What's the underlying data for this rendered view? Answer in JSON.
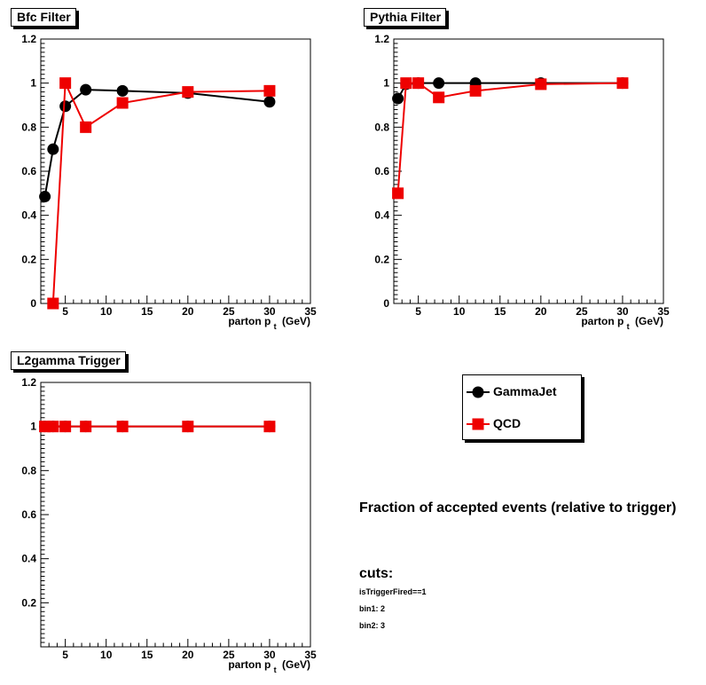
{
  "colors": {
    "gammajet": "#000000",
    "qcd": "#ee0000",
    "frame": "#000000"
  },
  "legend": {
    "entries": [
      {
        "name": "GammaJet",
        "color": "#000000",
        "marker": "circle"
      },
      {
        "name": "QCD",
        "color": "#ee0000",
        "marker": "square"
      }
    ]
  },
  "notes": {
    "heading": "Fraction of accepted events (relative to trigger)",
    "cuts_title": "cuts:",
    "cut_lines": [
      "isTriggerFired==1",
      "bin1: 2",
      "bin2: 3"
    ]
  },
  "chart_data": [
    {
      "type": "line",
      "title": "Bfc Filter",
      "xlabel": "parton p",
      "xlabel_sub": "t",
      "xlabel_unit": "(GeV)",
      "xlim": [
        2,
        35
      ],
      "ylim": [
        0,
        1.2
      ],
      "xticks": [
        5,
        10,
        15,
        20,
        25,
        30,
        35
      ],
      "yticks": [
        0,
        0.2,
        0.4,
        0.6,
        0.8,
        1,
        1.2
      ],
      "grid": false,
      "series": [
        {
          "name": "GammaJet",
          "marker": "circle",
          "color": "#000000",
          "x": [
            2.5,
            3.5,
            5,
            7.5,
            12,
            20,
            30
          ],
          "y": [
            0.485,
            0.7,
            0.895,
            0.97,
            0.965,
            0.955,
            0.915
          ]
        },
        {
          "name": "QCD",
          "marker": "square",
          "color": "#ee0000",
          "x": [
            3.5,
            5,
            7.5,
            12,
            20,
            30
          ],
          "y": [
            0.0,
            1.0,
            0.8,
            0.91,
            0.96,
            0.965
          ]
        }
      ]
    },
    {
      "type": "line",
      "title": "Pythia Filter",
      "xlabel": "parton p",
      "xlabel_sub": "t",
      "xlabel_unit": "(GeV)",
      "xlim": [
        2,
        35
      ],
      "ylim": [
        0,
        1.2
      ],
      "xticks": [
        5,
        10,
        15,
        20,
        25,
        30,
        35
      ],
      "yticks": [
        0,
        0.2,
        0.4,
        0.6,
        0.8,
        1,
        1.2
      ],
      "grid": false,
      "series": [
        {
          "name": "GammaJet",
          "marker": "circle",
          "color": "#000000",
          "x": [
            2.5,
            3.5,
            5,
            7.5,
            12,
            20,
            30
          ],
          "y": [
            0.93,
            0.995,
            1.0,
            1.0,
            1.0,
            1.0,
            1.0
          ]
        },
        {
          "name": "QCD",
          "marker": "square",
          "color": "#ee0000",
          "x": [
            2.5,
            3.5,
            5,
            7.5,
            12,
            20,
            30
          ],
          "y": [
            0.5,
            1.0,
            1.0,
            0.935,
            0.965,
            0.995,
            1.0
          ]
        }
      ]
    },
    {
      "type": "line",
      "title": "L2gamma Trigger",
      "xlabel": "parton p",
      "xlabel_sub": "t",
      "xlabel_unit": "(GeV)",
      "xlim": [
        2,
        35
      ],
      "ylim": [
        0,
        1.2
      ],
      "xticks": [
        5,
        10,
        15,
        20,
        25,
        30,
        35
      ],
      "yticks": [
        0.2,
        0.4,
        0.6,
        0.8,
        1,
        1.2
      ],
      "grid": false,
      "series": [
        {
          "name": "GammaJet",
          "marker": "circle",
          "color": "#000000",
          "x": [
            2.5,
            3.5,
            5,
            7.5,
            12,
            20,
            30
          ],
          "y": [
            1,
            1,
            1,
            1,
            1,
            1,
            1
          ]
        },
        {
          "name": "QCD",
          "marker": "square",
          "color": "#ee0000",
          "x": [
            2.5,
            3.5,
            5,
            7.5,
            12,
            20,
            30
          ],
          "y": [
            1,
            1,
            1,
            1,
            1,
            1,
            1
          ]
        }
      ]
    }
  ]
}
